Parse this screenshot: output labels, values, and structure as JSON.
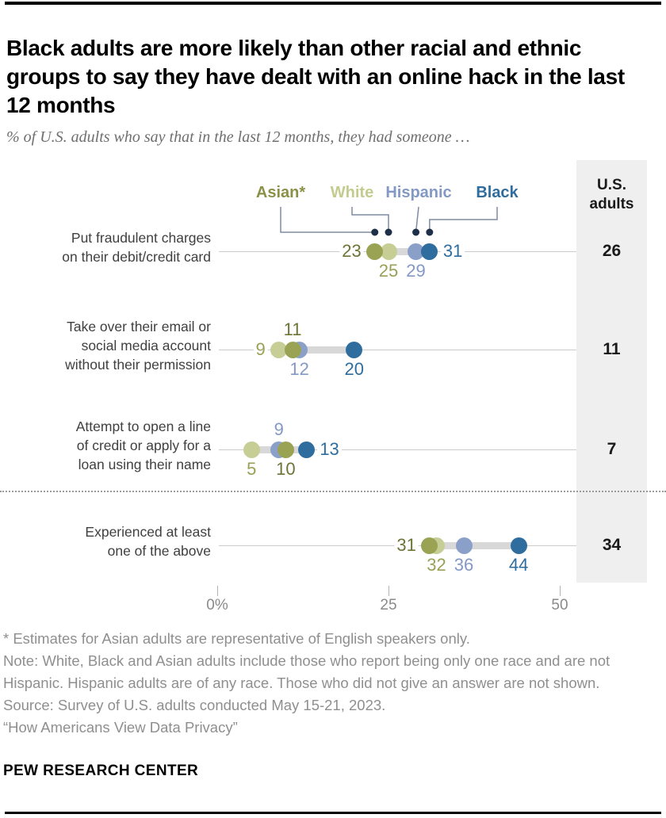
{
  "page": {
    "title": "Black adults are more likely than other racial and ethnic groups to say they have dealt with an online hack in the last 12 months",
    "subtitle": "% of U.S. adults who say that in the last 12 months, they had someone …",
    "branding": "PEW RESEARCH CENTER",
    "footnotes": [
      "* Estimates for Asian adults are representative of English speakers only.",
      "Note: White, Black and Asian adults include those who report being only one race and are not Hispanic. Hispanic adults are of any race. Those who did not give an answer are not shown.",
      "Source: Survey of U.S. adults conducted May 15-21, 2023.",
      "“How Americans View Data Privacy”"
    ]
  },
  "colors": {
    "asian_dot": "#9aa353",
    "asian_label": "#6e7434",
    "asian_legend": "#8a9147",
    "white_dot": "#c6ce96",
    "white_label": "#9aa056",
    "white_legend": "#c3cc8e",
    "hispanic_dot": "#8ba0c9",
    "hispanic_label": "#8399c5",
    "hispanic_legend": "#8399c5",
    "black_dot": "#2e6d9e",
    "black_label": "#2e6d9e",
    "black_legend": "#2e6d9e",
    "connector_line": "#7e8ca2",
    "connector_dot": "#1e2f4a",
    "range_bar": "#d8d8d8",
    "row_line": "#cccccc",
    "us_column_bg": "#efefef"
  },
  "legend": [
    {
      "id": "asian",
      "label": "Asian*"
    },
    {
      "id": "white",
      "label": "White"
    },
    {
      "id": "hispanic",
      "label": "Hispanic"
    },
    {
      "id": "black",
      "label": "Black"
    }
  ],
  "us_column": {
    "header": "U.S.\nadults"
  },
  "axis": {
    "ticks": [
      {
        "value": 0,
        "label": "0%"
      },
      {
        "value": 25,
        "label": "25"
      },
      {
        "value": 50,
        "label": "50"
      }
    ]
  },
  "chart_data": {
    "type": "scatter",
    "subtype": "dot-plot",
    "xlim": [
      0,
      50
    ],
    "grid": false,
    "legend_position": "top",
    "groups": [
      "Asian*",
      "White",
      "Hispanic",
      "Black"
    ],
    "rows": [
      {
        "label": "Put fraudulent charges\non their debit/credit card",
        "us_adults": 26,
        "points": [
          {
            "group": "white",
            "value": 25,
            "label_pos": "below"
          },
          {
            "group": "hispanic",
            "value": 29,
            "label_pos": "below"
          },
          {
            "group": "asian",
            "value": 23,
            "label_pos": "left"
          },
          {
            "group": "black",
            "value": 31,
            "label_pos": "right"
          }
        ]
      },
      {
        "label": "Take over their email or\nsocial media account\nwithout their permission",
        "us_adults": 11,
        "points": [
          {
            "group": "white",
            "value": 9,
            "label_pos": "left"
          },
          {
            "group": "hispanic",
            "value": 12,
            "label_pos": "below"
          },
          {
            "group": "asian",
            "value": 11,
            "label_pos": "above"
          },
          {
            "group": "black",
            "value": 20,
            "label_pos": "below"
          }
        ]
      },
      {
        "label": "Attempt to open a line\nof credit or apply for a\nloan using their name",
        "us_adults": 7,
        "points": [
          {
            "group": "white",
            "value": 5,
            "label_pos": "below"
          },
          {
            "group": "hispanic",
            "value": 9,
            "label_pos": "above"
          },
          {
            "group": "asian",
            "value": 10,
            "label_pos": "below"
          },
          {
            "group": "black",
            "value": 13,
            "label_pos": "right"
          }
        ]
      },
      {
        "label": "Experienced at least\none of the above",
        "us_adults": 34,
        "points": [
          {
            "group": "white",
            "value": 32,
            "label_pos": "below"
          },
          {
            "group": "asian",
            "value": 31,
            "label_pos": "left"
          },
          {
            "group": "hispanic",
            "value": 36,
            "label_pos": "below"
          },
          {
            "group": "black",
            "value": 44,
            "label_pos": "below"
          }
        ]
      }
    ]
  }
}
